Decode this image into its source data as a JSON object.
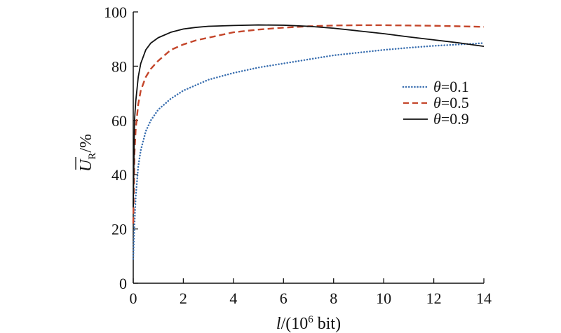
{
  "chart_data": {
    "type": "line",
    "x_range": [
      0,
      14
    ],
    "y_range": [
      0,
      100
    ],
    "x_ticks": [
      0,
      2,
      4,
      6,
      8,
      10,
      12,
      14
    ],
    "y_ticks": [
      0,
      20,
      40,
      60,
      80,
      100
    ],
    "x_tick_labels": [
      "0",
      "2",
      "4",
      "6",
      "8",
      "10",
      "12",
      "14"
    ],
    "y_tick_labels": [
      "0",
      "20",
      "40",
      "60",
      "80",
      "100"
    ],
    "xlabel": {
      "symbol": "l",
      "prefix": "/(10",
      "exponent": "6",
      "suffix": " bit)"
    },
    "ylabel": {
      "symbol": "U",
      "subscript": "R",
      "suffix": "/%"
    },
    "grid": false,
    "legend_position": "right",
    "series": [
      {
        "name": "θ=0.1",
        "legend_symbol": "θ",
        "legend_value": "=0.1",
        "style": "dotted",
        "color": "#3a6fb0",
        "x": [
          0,
          0.05,
          0.1,
          0.2,
          0.3,
          0.5,
          0.7,
          1,
          1.5,
          2,
          2.5,
          3,
          4,
          5,
          6,
          7,
          8,
          9,
          10,
          11,
          12,
          13,
          14
        ],
        "y": [
          9,
          22,
          32,
          43,
          49,
          56,
          60,
          64,
          68,
          71,
          73,
          75,
          77.5,
          79.5,
          81,
          82.5,
          84,
          85,
          86,
          86.8,
          87.5,
          88,
          88.5
        ]
      },
      {
        "name": "θ=0.5",
        "legend_symbol": "θ",
        "legend_value": "=0.5",
        "style": "dashed",
        "color": "#c4462b",
        "x": [
          0,
          0.05,
          0.1,
          0.2,
          0.3,
          0.5,
          0.7,
          1,
          1.5,
          2,
          2.5,
          3,
          4,
          5,
          6,
          7,
          8,
          9,
          10,
          11,
          12,
          13,
          14
        ],
        "y": [
          22,
          48,
          57,
          66,
          71,
          76,
          79,
          82,
          86,
          88,
          89.5,
          90.5,
          92.5,
          93.5,
          94.2,
          94.7,
          95,
          95.1,
          95.1,
          95,
          94.9,
          94.7,
          94.5
        ]
      },
      {
        "name": "θ=0.9",
        "legend_symbol": "θ",
        "legend_value": "=0.9",
        "style": "solid",
        "color": "#111111",
        "x": [
          0,
          0.05,
          0.1,
          0.2,
          0.3,
          0.5,
          0.7,
          1,
          1.5,
          2,
          2.5,
          3,
          4,
          5,
          6,
          7,
          8,
          9,
          10,
          11,
          12,
          13,
          14
        ],
        "y": [
          28,
          60,
          67,
          76,
          81,
          86,
          88.5,
          90.5,
          92.5,
          93.7,
          94.3,
          94.7,
          95,
          95.2,
          95.1,
          94.7,
          94,
          93,
          92,
          90.8,
          89.7,
          88.6,
          87.3
        ]
      }
    ]
  }
}
